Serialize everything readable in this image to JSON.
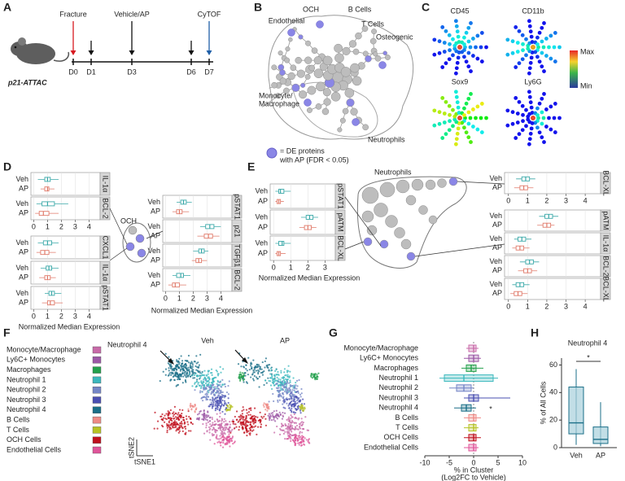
{
  "panel_labels": [
    "A",
    "B",
    "C",
    "D",
    "E",
    "F",
    "G",
    "H"
  ],
  "timeline": {
    "strain": "p21-ATTAC",
    "fracture": "Fracture",
    "treatment": "Vehicle/AP",
    "readout": "CyTOF",
    "days": [
      "D0",
      "D1",
      "D3",
      "D6",
      "D7"
    ]
  },
  "network": {
    "och": "OCH",
    "b_cells": "B Cells",
    "endothelial": "Endothelial",
    "t_cells": "T Cells",
    "osteogenic": "Osteogenic",
    "monocyte": [
      "Monocyte/",
      "Macrophage"
    ],
    "neutrophils": "Neutrophils",
    "legend": [
      "= DE proteins",
      "with AP (FDR < 0.05)"
    ]
  },
  "markers": {
    "names": [
      "CD45",
      "CD11b",
      "Sox9",
      "Ly6G"
    ],
    "scale": [
      "Max",
      "Min"
    ]
  },
  "groups": [
    "Veh",
    "AP"
  ],
  "expression_label": "Normalized Median Expression",
  "panel_d": {
    "subset": "OCH",
    "left": {
      "xlim": [
        -0.2,
        4.8
      ],
      "xticks": [
        0,
        1,
        2,
        3,
        4
      ],
      "blocks": [
        [
          {
            "label": "IL-1α",
            "values": [
              [
                0.3,
                0.8,
                1,
                1.2,
                1.8
              ],
              [
                0.5,
                0.8,
                1,
                1.1,
                1.5
              ]
            ]
          },
          {
            "label": "BCL-2",
            "values": [
              [
                0.2,
                0.6,
                1,
                1.5,
                2.5
              ],
              [
                0.1,
                0.4,
                0.7,
                1.1,
                1.8
              ]
            ]
          }
        ],
        [
          {
            "label": "CXCL1",
            "values": [
              [
                0.3,
                0.7,
                1,
                1.3,
                1.8
              ],
              [
                0.2,
                0.5,
                0.8,
                1.1,
                1.6
              ]
            ]
          },
          {
            "label": "IL-1α",
            "values": [
              [
                0.5,
                0.9,
                1.1,
                1.3,
                1.8
              ],
              [
                0.4,
                0.8,
                1,
                1.2,
                1.6
              ]
            ]
          },
          {
            "label": "pSTAT1",
            "values": [
              [
                0.8,
                1.1,
                1.3,
                1.5,
                2
              ],
              [
                0.6,
                1,
                1.2,
                1.5,
                2.1
              ]
            ]
          }
        ]
      ]
    },
    "right": {
      "xlim": [
        -0.2,
        4.8
      ],
      "xticks": [
        0,
        1,
        2,
        3,
        4
      ],
      "blocks": [
        [
          {
            "label": "pSTAT1",
            "values": [
              [
                0.8,
                1.1,
                1.3,
                1.5,
                1.9
              ],
              [
                0.5,
                0.8,
                1,
                1.2,
                1.7
              ]
            ]
          },
          {
            "label": "p21",
            "values": [
              [
                2.5,
                2.9,
                3.2,
                3.5,
                4
              ],
              [
                2.3,
                2.8,
                3.1,
                3.4,
                3.9
              ]
            ]
          },
          {
            "label": "TGFβ1",
            "values": [
              [
                2,
                2.4,
                2.6,
                2.8,
                3.1
              ],
              [
                1.9,
                2.2,
                2.4,
                2.6,
                3
              ]
            ]
          },
          {
            "label": "BCL-2",
            "values": [
              [
                0.5,
                0.8,
                1.1,
                1.3,
                1.8
              ],
              [
                0.2,
                0.5,
                0.7,
                1,
                1.5
              ]
            ]
          }
        ]
      ]
    }
  },
  "panel_e": {
    "subset": "Neutrophils",
    "left": {
      "xlim": [
        -0.2,
        3.6
      ],
      "xticks": [
        0,
        1,
        2,
        3
      ],
      "blocks": [
        [
          {
            "label": "pSTAT1",
            "values": [
              [
                0.1,
                0.3,
                0.4,
                0.6,
                1
              ],
              [
                0.1,
                0.2,
                0.3,
                0.4,
                0.6
              ]
            ]
          },
          {
            "label": "pATM",
            "values": [
              [
                1.6,
                1.9,
                2.1,
                2.3,
                2.6
              ],
              [
                1.5,
                1.8,
                2,
                2.2,
                2.5
              ]
            ]
          },
          {
            "label": "BCL-XL",
            "values": [
              [
                0.1,
                0.3,
                0.5,
                0.6,
                1
              ],
              [
                0.1,
                0.2,
                0.3,
                0.4,
                0.7
              ]
            ]
          }
        ]
      ]
    },
    "right": {
      "xlim": [
        -0.2,
        4.8
      ],
      "xticks": [
        0,
        1,
        2,
        3,
        4
      ],
      "blocks": [
        [
          {
            "label": "BCL-XL",
            "values": [
              [
                0.4,
                0.7,
                0.9,
                1.1,
                1.4
              ],
              [
                0.3,
                0.6,
                0.8,
                1,
                1.3
              ]
            ]
          }
        ],
        [
          {
            "label": "pATM",
            "values": [
              [
                1.6,
                1.9,
                2.1,
                2.3,
                2.6
              ],
              [
                1.5,
                1.8,
                2,
                2.2,
                2.4
              ]
            ]
          },
          {
            "label": "IL-1α",
            "values": [
              [
                0.3,
                0.5,
                0.7,
                0.9,
                1.2
              ],
              [
                0.2,
                0.4,
                0.6,
                0.8,
                1.1
              ]
            ]
          },
          {
            "label": "BCL-2",
            "values": [
              [
                0.6,
                0.9,
                1.1,
                1.3,
                1.6
              ],
              [
                0.5,
                0.8,
                1,
                1.2,
                1.5
              ]
            ]
          },
          {
            "label": "BCL-XL",
            "values": [
              [
                0.2,
                0.4,
                0.6,
                0.8,
                1.1
              ],
              [
                0.1,
                0.3,
                0.5,
                0.7,
                1
              ]
            ]
          }
        ]
      ]
    }
  },
  "cell_types": [
    {
      "name": "Monocyte/Macrophage",
      "color": "#c86aa8"
    },
    {
      "name": "Ly6C+ Monocytes",
      "color": "#9c58a6"
    },
    {
      "name": "Macrophages",
      "color": "#23a04c"
    },
    {
      "name": "Neutrophil 1",
      "color": "#3bb8bd"
    },
    {
      "name": "Neutrophil 2",
      "color": "#7486c6"
    },
    {
      "name": "Neutrophil 3",
      "color": "#4a4fb2"
    },
    {
      "name": "Neutrophil 4",
      "color": "#1b6f88"
    },
    {
      "name": "B Cells",
      "color": "#ee8a86"
    },
    {
      "name": "T Cells",
      "color": "#b6c224"
    },
    {
      "name": "OCH Cells",
      "color": "#c0101e"
    },
    {
      "name": "Endothelial Cells",
      "color": "#e0559a"
    }
  ],
  "panel_f": {
    "axes": [
      "tSNE2",
      "tSNE1"
    ]
  },
  "panel_g": {
    "type": "box",
    "xlim": [
      -10,
      10
    ],
    "xticks": [
      -10,
      -5,
      0,
      5,
      10
    ],
    "xlabel": [
      "% in Cluster",
      "(Log2FC to Vehicle)"
    ],
    "annotation": "*",
    "boxes": [
      [
        -1.5,
        -1,
        0,
        0.5,
        1
      ],
      [
        -2,
        -1,
        0,
        1,
        1.5
      ],
      [
        -2.5,
        -1.5,
        -0.5,
        0.5,
        2
      ],
      [
        -7,
        -6,
        -2,
        4,
        5
      ],
      [
        -5,
        -3.5,
        -2,
        -0.5,
        0
      ],
      [
        -2,
        -1,
        0,
        1,
        7.5
      ],
      [
        -4,
        -2.5,
        -1.5,
        -0.5,
        0.5
      ],
      [
        -2,
        -1,
        0,
        0.5,
        1.5
      ],
      [
        -2,
        -1,
        0,
        0.5,
        1
      ],
      [
        -2,
        -1,
        0,
        0.5,
        1.5
      ],
      [
        -2,
        -1,
        0,
        0.5,
        1
      ]
    ]
  },
  "panel_h": {
    "type": "box",
    "ylabel": "% of All Cells",
    "ylim": [
      0,
      65
    ],
    "yticks": [
      0,
      20,
      40,
      60
    ],
    "annotation": "*",
    "boxes": [
      [
        2,
        10,
        18,
        44,
        57
      ],
      [
        1,
        3,
        6,
        15,
        33
      ]
    ]
  }
}
